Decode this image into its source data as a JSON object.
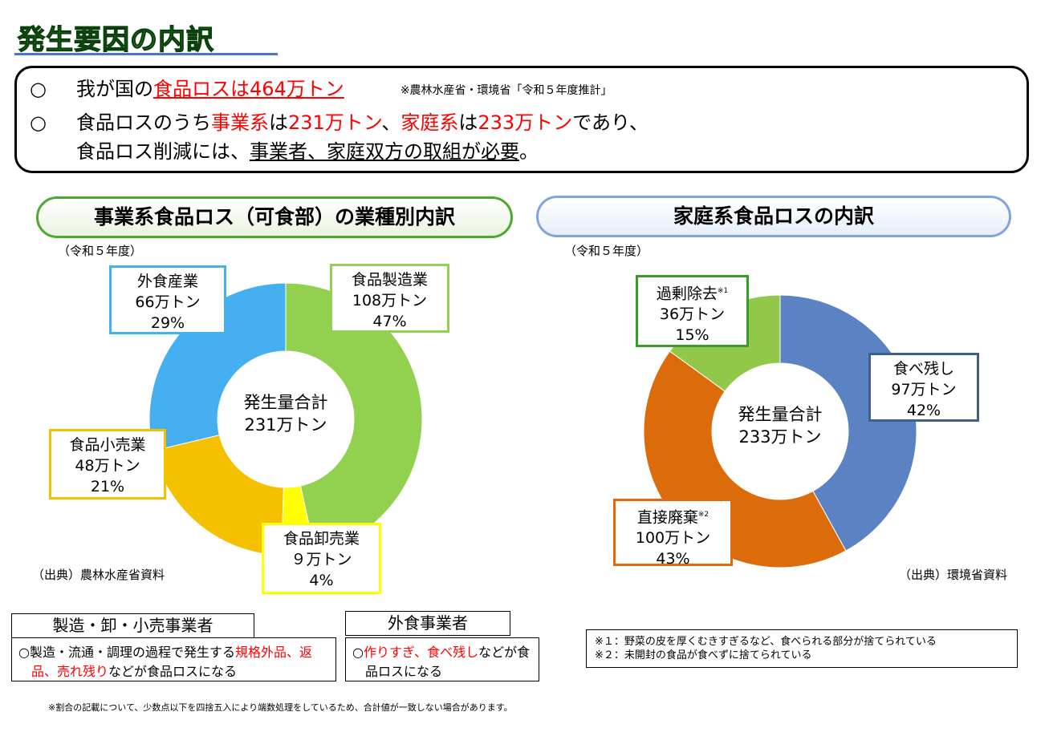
{
  "header": {
    "title": "発生要因の内訳"
  },
  "summary": {
    "lines": [
      {
        "bullet": "○",
        "segments": [
          {
            "text": "我が国の"
          },
          {
            "text": "食品ロスは464万トン",
            "color": "#ff0000",
            "underline": true
          }
        ],
        "note": "※農林水産省・環境省「令和５年度推計」"
      },
      {
        "bullet": "○",
        "segments": [
          {
            "text": "食品ロスのうち"
          },
          {
            "text": "事業系",
            "color": "#ff0000"
          },
          {
            "text": "は"
          },
          {
            "text": "231万トン",
            "color": "#ff0000"
          },
          {
            "text": "、"
          },
          {
            "text": "家庭系",
            "color": "#ff0000"
          },
          {
            "text": "は"
          },
          {
            "text": "233万トン",
            "color": "#ff0000"
          },
          {
            "text": "であり、"
          }
        ]
      },
      {
        "segments": [
          {
            "text": "食品ロス削減には、"
          },
          {
            "text": "事業者、家庭双方の取組が必要",
            "underline": true
          },
          {
            "text": "。"
          }
        ]
      }
    ]
  },
  "chart_data": [
    {
      "type": "donut",
      "title": "事業系食品ロス（可食部）の業種別内訳",
      "subtitle": "（令和５年度）",
      "center_label": [
        "発生量合計",
        "231万トン"
      ],
      "categories": [
        "食品製造業",
        "食品卸売業",
        "食品小売業",
        "外食産業"
      ],
      "values": [
        47,
        4,
        21,
        29
      ],
      "value_labels": [
        "47%",
        "4%",
        "21%",
        "29%"
      ],
      "amount_labels": [
        "108万トン",
        "９万トン",
        "48万トン",
        "66万トン"
      ],
      "colors": [
        "#92d050",
        "#ffff00",
        "#f5c000",
        "#45aff0"
      ],
      "label_border_colors": [
        "#92d050",
        "#ffff00",
        "#f5c000",
        "#45aff0"
      ],
      "title_border_color": "#4ea72e",
      "source": "（出典）農林水産省資料"
    },
    {
      "type": "donut",
      "title": "家庭系食品ロスの内訳",
      "subtitle": "（令和５年度）",
      "center_label": [
        "発生量合計",
        "233万トン"
      ],
      "categories": [
        "食べ残し",
        "直接廃棄",
        "過剰除去"
      ],
      "category_notes": [
        null,
        "※2",
        "※1"
      ],
      "values": [
        42,
        43,
        15
      ],
      "value_labels": [
        "42%",
        "43%",
        "15%"
      ],
      "amount_labels": [
        "97万トン",
        "100万トン",
        "36万トン"
      ],
      "colors": [
        "#5b82c3",
        "#dc6b0a",
        "#92c84a"
      ],
      "label_border_colors": [
        "#3f5f8f",
        "#dc6b0a",
        "#3a9a2a"
      ],
      "title_border_color": "#7ea6dc",
      "source": "（出典）環境省資料"
    }
  ],
  "business_boxes": [
    {
      "title": "製造・卸・小売事業者",
      "segments": [
        {
          "text": "○製造・流通・調理の過程で発生する"
        },
        {
          "text": "規格外品、返品、売れ残り",
          "color": "#ff0000"
        },
        {
          "text": "などが食品ロスになる"
        }
      ]
    },
    {
      "title": "外食事業者",
      "segments": [
        {
          "text": "○"
        },
        {
          "text": "作りすぎ、食べ残し",
          "color": "#ff0000"
        },
        {
          "text": "などが食品ロスになる"
        }
      ]
    }
  ],
  "notes": [
    "※１：野菜の皮を厚くむきすぎるなど、食べられる部分が捨てられている",
    "※２：未開封の食品が食べずに捨てられている"
  ],
  "footer": "※割合の記載について、少数点以下を四捨五入により端数処理をしているため、合計値が一致しない場合があります。"
}
